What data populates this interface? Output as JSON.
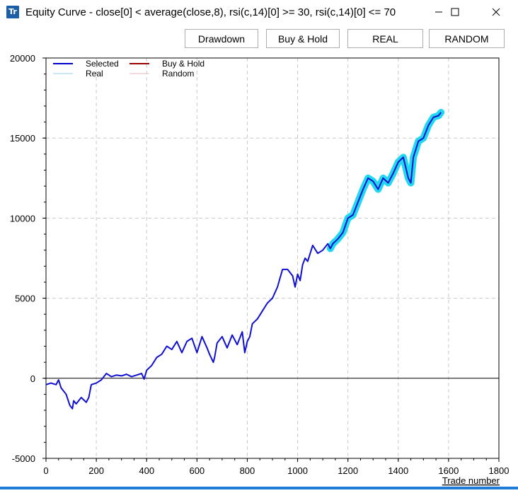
{
  "window": {
    "icon_text": "Tr",
    "title": "Equity Curve - close[0] < average(close,8), rsi(c,14)[0] >= 30, rsi(c,14)[0] <= 70",
    "minimize": "—",
    "maximize": "☐",
    "close": "✕"
  },
  "toolbar": {
    "drawdown": "Drawdown",
    "buy_hold": "Buy & Hold",
    "real": "REAL",
    "random": "RANDOM"
  },
  "chart_data": {
    "type": "line",
    "title": "",
    "xlabel": "Trade number",
    "ylabel": "",
    "xlim": [
      0,
      1800
    ],
    "ylim": [
      -5000,
      20000
    ],
    "x_ticks": [
      "0",
      "200",
      "400",
      "600",
      "800",
      "1000",
      "1200",
      "1400",
      "1600",
      "1800"
    ],
    "y_ticks": [
      "20000",
      "15000",
      "10000",
      "5000",
      "0",
      "-5000"
    ],
    "grid": true,
    "legend_position": "top-left",
    "legend": [
      {
        "name": "Selected",
        "color": "#0000cc"
      },
      {
        "name": "Buy & Hold",
        "color": "#990000"
      },
      {
        "name": "Real",
        "color": "#99cce8"
      },
      {
        "name": "Random",
        "color": "#e8b8b8"
      }
    ],
    "series": [
      {
        "name": "Selected",
        "color": "#1010d0",
        "highlight_color": "#22d8f0",
        "highlight_from_x": 1130,
        "x": [
          0,
          20,
          40,
          50,
          60,
          80,
          95,
          105,
          110,
          120,
          140,
          160,
          170,
          180,
          200,
          220,
          240,
          260,
          280,
          300,
          320,
          340,
          360,
          380,
          390,
          400,
          420,
          440,
          460,
          480,
          500,
          520,
          540,
          560,
          580,
          600,
          620,
          640,
          650,
          665,
          670,
          680,
          700,
          720,
          740,
          760,
          780,
          790,
          800,
          810,
          820,
          840,
          860,
          880,
          900,
          920,
          940,
          960,
          980,
          990,
          1000,
          1010,
          1020,
          1030,
          1040,
          1060,
          1080,
          1100,
          1120,
          1130,
          1140,
          1160,
          1180,
          1200,
          1220,
          1240,
          1260,
          1280,
          1300,
          1320,
          1340,
          1360,
          1380,
          1400,
          1420,
          1440,
          1450,
          1460,
          1480,
          1500,
          1520,
          1540,
          1560,
          1570
        ],
        "values": [
          -400,
          -300,
          -400,
          -100,
          -600,
          -1000,
          -1700,
          -1900,
          -1400,
          -1600,
          -1200,
          -1500,
          -1200,
          -400,
          -300,
          -100,
          300,
          100,
          200,
          150,
          250,
          100,
          200,
          300,
          -50,
          500,
          800,
          1300,
          1500,
          2000,
          1800,
          2300,
          1600,
          2300,
          2500,
          1600,
          2600,
          1900,
          1500,
          1000,
          1300,
          2200,
          2600,
          1900,
          2700,
          2100,
          2900,
          1600,
          2300,
          2600,
          3400,
          3700,
          4200,
          4700,
          5000,
          5700,
          6800,
          6800,
          6400,
          5700,
          6500,
          6100,
          7100,
          7500,
          7300,
          8300,
          7800,
          8000,
          8400,
          8100,
          8400,
          8700,
          9100,
          10000,
          10200,
          11000,
          11800,
          12500,
          12300,
          11800,
          12500,
          12200,
          12800,
          13500,
          13800,
          12500,
          12200,
          13800,
          14800,
          15000,
          15800,
          16300,
          16400,
          16600
        ]
      }
    ]
  }
}
